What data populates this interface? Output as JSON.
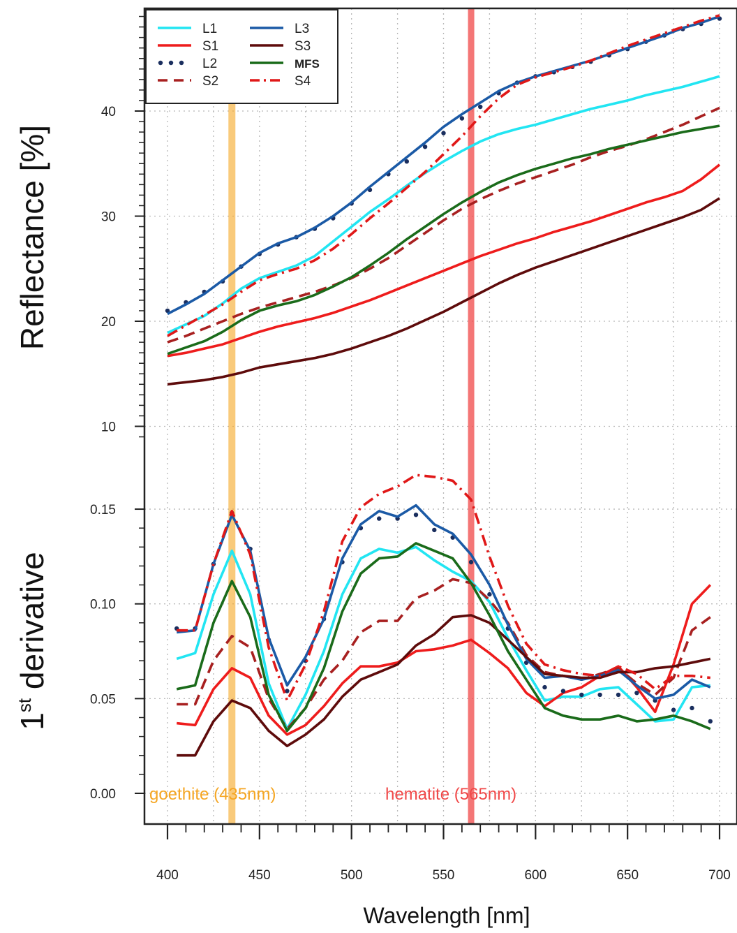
{
  "chart_data": [
    {
      "type": "line",
      "panel": "top",
      "ylabel": "Reflectance [%]",
      "ylim": [
        5,
        50
      ],
      "yticks": [
        10,
        20,
        30,
        40
      ],
      "grid": true,
      "legend_position": "top-left",
      "legend": [
        "L1",
        "S1",
        "L2",
        "S2",
        "L3",
        "S3",
        "MFS",
        "S4"
      ],
      "x": [
        400,
        410,
        420,
        430,
        440,
        450,
        460,
        470,
        480,
        490,
        500,
        510,
        520,
        530,
        540,
        550,
        560,
        570,
        580,
        590,
        600,
        610,
        620,
        630,
        640,
        650,
        660,
        670,
        680,
        690,
        700
      ],
      "series": [
        {
          "name": "L1",
          "color": "#22e5f2",
          "style": "solid",
          "values": [
            18.9,
            19.7,
            20.5,
            21.7,
            23.1,
            24.1,
            24.7,
            25.3,
            26.2,
            27.6,
            29.0,
            30.4,
            31.6,
            32.9,
            34.1,
            35.2,
            36.2,
            37.1,
            37.8,
            38.3,
            38.7,
            39.2,
            39.7,
            40.2,
            40.6,
            41.0,
            41.5,
            41.9,
            42.3,
            42.8,
            43.3
          ]
        },
        {
          "name": "S1",
          "color": "#ee1c1c",
          "style": "solid",
          "values": [
            16.7,
            17.0,
            17.4,
            17.8,
            18.4,
            19.0,
            19.5,
            19.9,
            20.3,
            20.8,
            21.4,
            22.0,
            22.7,
            23.4,
            24.1,
            24.8,
            25.5,
            26.2,
            26.8,
            27.4,
            27.9,
            28.5,
            29.0,
            29.5,
            30.1,
            30.7,
            31.3,
            31.8,
            32.4,
            33.5,
            34.9
          ]
        },
        {
          "name": "L2",
          "color": "#1a2e5e",
          "style": "dotted",
          "values": [
            21.0,
            21.8,
            22.8,
            23.8,
            25.2,
            26.4,
            27.3,
            28.0,
            28.8,
            29.8,
            31.2,
            32.5,
            34.0,
            35.2,
            36.6,
            37.9,
            39.3,
            40.4,
            41.7,
            42.7,
            43.3,
            43.7,
            44.2,
            44.7,
            45.3,
            45.9,
            46.6,
            47.2,
            47.8,
            48.3,
            48.8
          ]
        },
        {
          "name": "S2",
          "color": "#a82020",
          "style": "dashed",
          "values": [
            18.0,
            18.6,
            19.3,
            20.0,
            20.7,
            21.3,
            21.8,
            22.3,
            22.8,
            23.4,
            24.1,
            25.0,
            26.0,
            27.2,
            28.4,
            29.6,
            30.7,
            31.6,
            32.4,
            33.1,
            33.7,
            34.3,
            34.9,
            35.6,
            36.2,
            36.7,
            37.3,
            38.0,
            38.7,
            39.5,
            40.3
          ]
        },
        {
          "name": "L3",
          "color": "#1b5aa6",
          "style": "solid",
          "values": [
            20.7,
            21.6,
            22.6,
            23.9,
            25.2,
            26.5,
            27.4,
            28.0,
            28.9,
            30.0,
            31.3,
            32.8,
            34.2,
            35.6,
            37.0,
            38.5,
            39.7,
            40.8,
            41.9,
            42.7,
            43.3,
            43.8,
            44.3,
            44.8,
            45.4,
            46.0,
            46.6,
            47.2,
            47.9,
            48.4,
            49.0
          ]
        },
        {
          "name": "S3",
          "color": "#5e0b0b",
          "style": "solid",
          "values": [
            14.0,
            14.2,
            14.4,
            14.7,
            15.1,
            15.6,
            15.9,
            16.2,
            16.5,
            16.9,
            17.4,
            18.0,
            18.6,
            19.3,
            20.1,
            20.9,
            21.8,
            22.7,
            23.6,
            24.4,
            25.1,
            25.7,
            26.3,
            26.9,
            27.5,
            28.1,
            28.7,
            29.3,
            29.9,
            30.6,
            31.7
          ]
        },
        {
          "name": "MFS",
          "color": "#1a6b1a",
          "style": "solid",
          "values": [
            16.9,
            17.5,
            18.1,
            19.0,
            20.1,
            21.0,
            21.5,
            21.9,
            22.5,
            23.3,
            24.2,
            25.3,
            26.5,
            27.8,
            29.0,
            30.2,
            31.3,
            32.3,
            33.2,
            33.9,
            34.5,
            35.0,
            35.5,
            35.9,
            36.4,
            36.8,
            37.2,
            37.6,
            38.0,
            38.3,
            38.6
          ]
        },
        {
          "name": "S4",
          "color": "#e01818",
          "style": "dashdot",
          "values": [
            18.6,
            19.6,
            20.6,
            21.6,
            22.8,
            23.9,
            24.5,
            25.0,
            25.8,
            26.9,
            28.3,
            29.8,
            31.2,
            32.7,
            34.2,
            35.9,
            37.6,
            39.5,
            41.2,
            42.5,
            43.2,
            43.7,
            44.2,
            44.8,
            45.5,
            46.2,
            46.8,
            47.4,
            48.0,
            48.6,
            49.1
          ]
        }
      ]
    },
    {
      "type": "line",
      "panel": "bottom",
      "ylabel": "1st derivative",
      "xlabel": "Wavelength [nm]",
      "xlim": [
        388,
        710
      ],
      "ylim": [
        -0.015,
        0.16
      ],
      "yticks": [
        0.0,
        0.05,
        0.1,
        0.15
      ],
      "ytick_labels": [
        "0.00",
        "0.05",
        "0.10",
        "0.15"
      ],
      "xticks": [
        400,
        450,
        500,
        550,
        600,
        650,
        700
      ],
      "grid": true,
      "x": [
        405,
        415,
        425,
        435,
        445,
        455,
        465,
        475,
        485,
        495,
        505,
        515,
        525,
        535,
        545,
        555,
        565,
        575,
        585,
        595,
        605,
        615,
        625,
        635,
        645,
        655,
        665,
        675,
        685,
        695
      ],
      "series": [
        {
          "name": "L1",
          "color": "#22e5f2",
          "style": "solid",
          "values": [
            0.071,
            0.074,
            0.105,
            0.128,
            0.105,
            0.058,
            0.034,
            0.052,
            0.075,
            0.105,
            0.124,
            0.129,
            0.127,
            0.13,
            0.123,
            0.117,
            0.112,
            0.101,
            0.082,
            0.065,
            0.049,
            0.051,
            0.051,
            0.055,
            0.056,
            0.047,
            0.038,
            0.039,
            0.056,
            0.057
          ]
        },
        {
          "name": "S1",
          "color": "#ee1c1c",
          "style": "solid",
          "values": [
            0.037,
            0.036,
            0.055,
            0.066,
            0.061,
            0.041,
            0.031,
            0.036,
            0.046,
            0.058,
            0.067,
            0.067,
            0.069,
            0.075,
            0.076,
            0.078,
            0.081,
            0.074,
            0.066,
            0.053,
            0.046,
            0.053,
            0.056,
            0.062,
            0.067,
            0.056,
            0.043,
            0.068,
            0.1,
            0.11
          ]
        },
        {
          "name": "L2",
          "color": "#1a2e5e",
          "style": "dotted",
          "values": [
            0.087,
            0.087,
            0.121,
            0.148,
            0.129,
            0.081,
            0.054,
            0.07,
            0.092,
            0.122,
            0.14,
            0.145,
            0.145,
            0.147,
            0.139,
            0.135,
            0.122,
            0.105,
            0.087,
            0.069,
            0.056,
            0.054,
            0.052,
            0.052,
            0.052,
            0.053,
            0.049,
            0.044,
            0.045,
            0.038
          ]
        },
        {
          "name": "S2",
          "color": "#a82020",
          "style": "dashed",
          "values": [
            0.047,
            0.047,
            0.07,
            0.083,
            0.077,
            0.05,
            0.034,
            0.045,
            0.06,
            0.07,
            0.085,
            0.091,
            0.091,
            0.103,
            0.107,
            0.113,
            0.111,
            0.102,
            0.09,
            0.073,
            0.064,
            0.062,
            0.06,
            0.063,
            0.066,
            0.058,
            0.052,
            0.061,
            0.086,
            0.093
          ]
        },
        {
          "name": "L3",
          "color": "#1b5aa6",
          "style": "solid",
          "values": [
            0.085,
            0.086,
            0.121,
            0.147,
            0.128,
            0.082,
            0.057,
            0.072,
            0.092,
            0.124,
            0.142,
            0.149,
            0.146,
            0.152,
            0.142,
            0.137,
            0.126,
            0.11,
            0.089,
            0.071,
            0.061,
            0.062,
            0.06,
            0.062,
            0.065,
            0.057,
            0.05,
            0.052,
            0.06,
            0.056
          ]
        },
        {
          "name": "S3",
          "color": "#5e0b0b",
          "style": "solid",
          "values": [
            0.02,
            0.02,
            0.038,
            0.049,
            0.045,
            0.033,
            0.025,
            0.031,
            0.039,
            0.051,
            0.06,
            0.064,
            0.068,
            0.078,
            0.084,
            0.093,
            0.094,
            0.09,
            0.081,
            0.072,
            0.063,
            0.062,
            0.061,
            0.061,
            0.064,
            0.064,
            0.066,
            0.067,
            0.069,
            0.071
          ]
        },
        {
          "name": "MFS",
          "color": "#1a6b1a",
          "style": "solid",
          "values": [
            0.055,
            0.057,
            0.09,
            0.112,
            0.093,
            0.052,
            0.033,
            0.045,
            0.066,
            0.096,
            0.116,
            0.124,
            0.125,
            0.132,
            0.128,
            0.124,
            0.111,
            0.094,
            0.075,
            0.06,
            0.045,
            0.041,
            0.039,
            0.039,
            0.041,
            0.038,
            0.039,
            0.041,
            0.038,
            0.034
          ]
        },
        {
          "name": "S4",
          "color": "#e01818",
          "style": "dashdot",
          "values": [
            0.086,
            0.086,
            0.121,
            0.149,
            0.126,
            0.077,
            0.049,
            0.068,
            0.096,
            0.133,
            0.151,
            0.158,
            0.162,
            0.168,
            0.167,
            0.165,
            0.155,
            0.125,
            0.099,
            0.079,
            0.068,
            0.065,
            0.063,
            0.062,
            0.067,
            0.063,
            0.055,
            0.062,
            0.062,
            0.061
          ]
        }
      ],
      "annotations": [
        {
          "text": "goethite (435nm)",
          "x": 435,
          "color": "#f5a623"
        },
        {
          "text": "hematite (565nm)",
          "x": 565,
          "color": "#f04848"
        }
      ]
    }
  ],
  "bands": [
    {
      "label": "goethite (435nm)",
      "x": 435,
      "color": "#f5a623"
    },
    {
      "label": "hematite (565nm)",
      "x": 565,
      "color": "#f04848"
    }
  ],
  "labels": {
    "xlabel": "Wavelength [nm]",
    "ylabel_top": "Reflectance [%]",
    "ylabel_bottom_prefix": "1",
    "ylabel_bottom_sup": "st",
    "ylabel_bottom_suffix": " derivative"
  }
}
